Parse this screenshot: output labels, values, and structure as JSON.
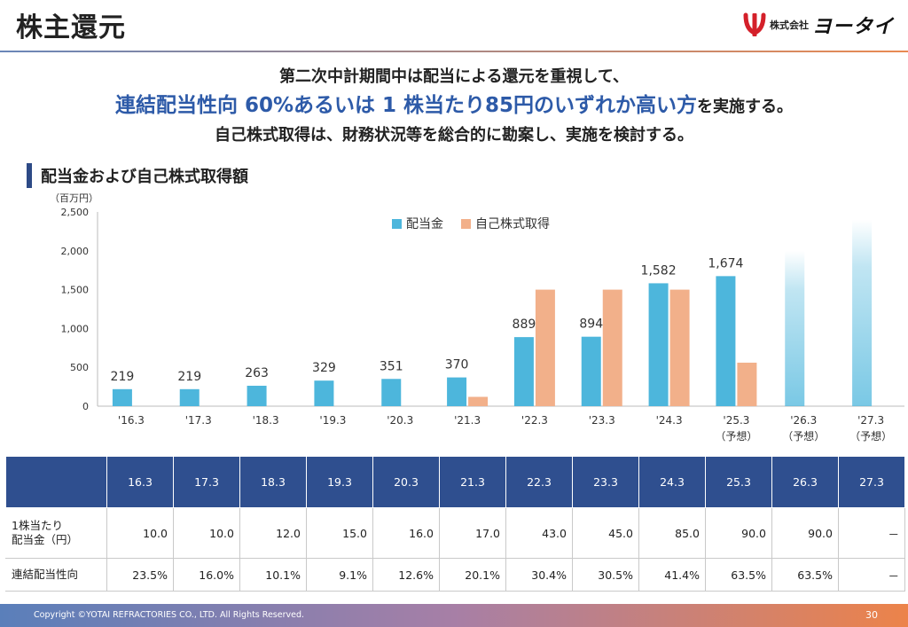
{
  "header": {
    "title": "株主還元",
    "logo_small": "株式会社",
    "logo_text": "ヨータイ"
  },
  "lead": {
    "line1": "第二次中計期間中は配当による還元を重視して、",
    "line2_highlight": "連結配当性向 60%あるいは 1 株当たり85円のいずれか高い方",
    "line2_tail": "を実施する。",
    "line3": "自己株式取得は、財務状況等を総合的に勘案し、実施を検討する。"
  },
  "section": {
    "title": "配当金および自己株式取得額"
  },
  "chart_data": {
    "type": "bar",
    "ylabel": "（百万円）",
    "ylim": [
      0,
      2500
    ],
    "yticks": [
      "0",
      "500",
      "1,000",
      "1,500",
      "2,000",
      "2,500"
    ],
    "ytick_values": [
      0,
      500,
      1000,
      1500,
      2000,
      2500
    ],
    "categories": [
      "'16.3",
      "'17.3",
      "'18.3",
      "'19.3",
      "'20.3",
      "'21.3",
      "'22.3",
      "'23.3",
      "'24.3",
      "'25.3",
      "'26.3",
      "'27.3"
    ],
    "category_sublabels": [
      "",
      "",
      "",
      "",
      "",
      "",
      "",
      "",
      "",
      "（予想）",
      "（予想）",
      "（予想）"
    ],
    "legend_position": "top",
    "series": [
      {
        "name": "配当金",
        "color": "#4db6dc",
        "values": [
          219,
          219,
          263,
          329,
          351,
          370,
          889,
          894,
          1582,
          1674,
          2000,
          2400
        ],
        "labels": [
          "219",
          "219",
          "263",
          "329",
          "351",
          "370",
          "889",
          "894",
          "1,582",
          "1,674",
          "",
          ""
        ],
        "faded": [
          false,
          false,
          false,
          false,
          false,
          false,
          false,
          false,
          false,
          false,
          true,
          true
        ]
      },
      {
        "name": "自己株式取得",
        "color": "#f2b08a",
        "values": [
          0,
          0,
          0,
          0,
          0,
          120,
          1500,
          1500,
          1500,
          560,
          0,
          0
        ]
      }
    ]
  },
  "table": {
    "headers": [
      "16.3",
      "17.3",
      "18.3",
      "19.3",
      "20.3",
      "21.3",
      "22.3",
      "23.3",
      "24.3",
      "25.3",
      "26.3",
      "27.3"
    ],
    "rows": [
      {
        "label_line1": "1株当たり",
        "label_line2": "配当金（円）",
        "values": [
          "10.0",
          "10.0",
          "12.0",
          "15.0",
          "16.0",
          "17.0",
          "43.0",
          "45.0",
          "85.0",
          "90.0",
          "90.0",
          "－"
        ]
      },
      {
        "label_line1": "連結配当性向",
        "label_line2": "",
        "values": [
          "23.5%",
          "16.0%",
          "10.1%",
          "9.1%",
          "12.6%",
          "20.1%",
          "30.4%",
          "30.5%",
          "41.4%",
          "63.5%",
          "63.5%",
          "－"
        ]
      }
    ]
  },
  "footer": {
    "copyright": "Copyright ©YOTAI REFRACTORIES CO., LTD. All Rights Reserved.",
    "page_number": "30"
  }
}
